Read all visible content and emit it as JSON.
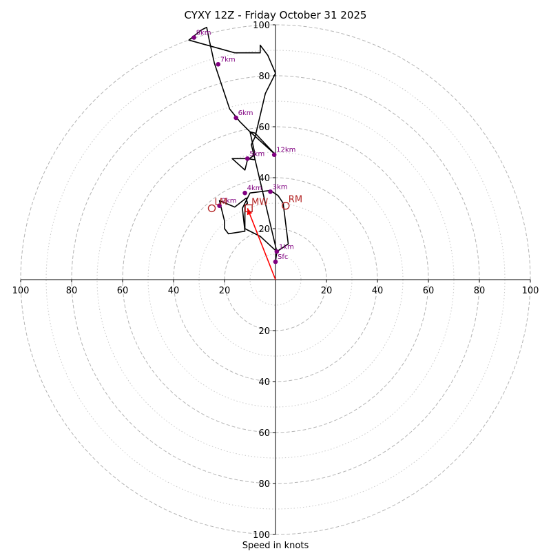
{
  "chart_data": {
    "type": "hodograph",
    "title": "CYXY 12Z - Friday October 31 2025",
    "xlabel": "Speed in knots",
    "range": [
      -100,
      100
    ],
    "ring_major": [
      20,
      40,
      60,
      80,
      100
    ],
    "ring_minor": [
      10,
      30,
      50,
      70,
      90
    ],
    "x_ticks": [
      {
        "value": -100,
        "label": "100"
      },
      {
        "value": -80,
        "label": "80"
      },
      {
        "value": -60,
        "label": "60"
      },
      {
        "value": -40,
        "label": "40"
      },
      {
        "value": -20,
        "label": "20"
      },
      {
        "value": 20,
        "label": "20"
      },
      {
        "value": 40,
        "label": "40"
      },
      {
        "value": 60,
        "label": "60"
      },
      {
        "value": 80,
        "label": "80"
      },
      {
        "value": 100,
        "label": "100"
      }
    ],
    "y_ticks": [
      {
        "value": 100,
        "label": "100"
      },
      {
        "value": 80,
        "label": "80"
      },
      {
        "value": 60,
        "label": "60"
      },
      {
        "value": 40,
        "label": "40"
      },
      {
        "value": 20,
        "label": "20"
      },
      {
        "value": -20,
        "label": "20"
      },
      {
        "value": -40,
        "label": "40"
      },
      {
        "value": -60,
        "label": "60"
      },
      {
        "value": -80,
        "label": "80"
      },
      {
        "value": -100,
        "label": "100"
      }
    ],
    "line_color": "#000000",
    "marker_color": "#800080",
    "storm_color": "#b22222",
    "shear_color": "#ff0000",
    "trace": [
      [
        0,
        7
      ],
      [
        0.5,
        11
      ],
      [
        -6,
        17
      ],
      [
        -12,
        20
      ],
      [
        -12,
        27
      ],
      [
        -12,
        29
      ],
      [
        -11,
        30
      ],
      [
        -11.5,
        32
      ],
      [
        -16,
        28.5
      ],
      [
        -22,
        31
      ],
      [
        -20,
        23
      ],
      [
        -20,
        20
      ],
      [
        -18.5,
        18
      ],
      [
        -12,
        19
      ],
      [
        -13,
        28
      ],
      [
        -10,
        34
      ],
      [
        -2,
        35
      ],
      [
        1,
        33
      ],
      [
        3,
        30
      ],
      [
        5,
        14
      ],
      [
        0.5,
        11
      ],
      [
        -8,
        47
      ],
      [
        -11,
        47.5
      ],
      [
        -17,
        47.5
      ],
      [
        -12,
        43
      ],
      [
        -11,
        47
      ],
      [
        -8,
        49
      ],
      [
        -10,
        58
      ],
      [
        -8,
        57.5
      ],
      [
        0,
        49
      ],
      [
        -10.5,
        58.5
      ],
      [
        -14,
        62
      ],
      [
        -18,
        67
      ],
      [
        -24,
        85
      ],
      [
        -26,
        94
      ],
      [
        -27,
        99
      ],
      [
        -29,
        98
      ],
      [
        -34,
        94
      ],
      [
        -16,
        89
      ],
      [
        -8,
        89
      ],
      [
        -6,
        89
      ],
      [
        -6,
        92
      ],
      [
        -3,
        88
      ],
      [
        0,
        81
      ],
      [
        -4,
        73
      ],
      [
        -8,
        56
      ],
      [
        -9.5,
        53
      ],
      [
        -8,
        47
      ]
    ],
    "height_markers": [
      {
        "label": "Sfc",
        "u": 0,
        "v": 7
      },
      {
        "label": "1km",
        "u": 0.5,
        "v": 11
      },
      {
        "label": "2km",
        "u": -22,
        "v": 29
      },
      {
        "label": "3km",
        "u": -2,
        "v": 34.5
      },
      {
        "label": "4km",
        "u": -12,
        "v": 34
      },
      {
        "label": "5km",
        "u": -11,
        "v": 47.5
      },
      {
        "label": "6km",
        "u": -15.5,
        "v": 63.5
      },
      {
        "label": "7km",
        "u": -22.5,
        "v": 84.5
      },
      {
        "label": "8km",
        "u": -32,
        "v": 95
      },
      {
        "label": "12km",
        "u": -0.5,
        "v": 49
      }
    ],
    "storm_motions": [
      {
        "label": "RM",
        "u": 4,
        "v": 29,
        "shape": "circle"
      },
      {
        "label": "LM",
        "u": -25,
        "v": 28,
        "shape": "circle"
      },
      {
        "label": "MW",
        "u": -10.5,
        "v": 28,
        "shape": "square"
      }
    ],
    "shear_vector": {
      "from": [
        0,
        0
      ],
      "to": [
        -11,
        28
      ]
    }
  }
}
